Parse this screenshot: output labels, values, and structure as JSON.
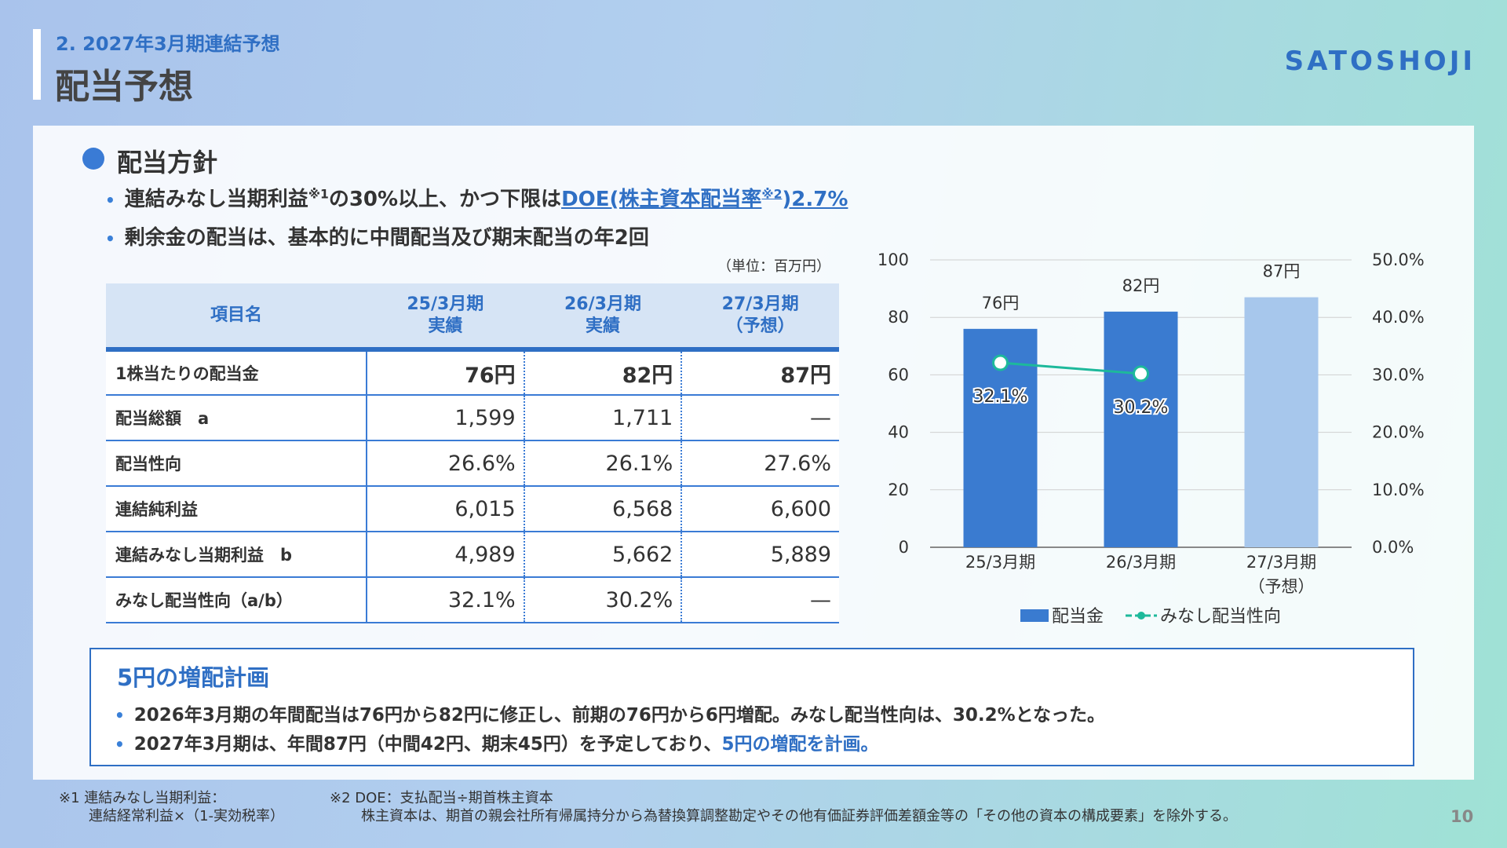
{
  "header": {
    "section": "2. 2027年3月期連結予想",
    "title": "配当予想",
    "logo": "SATOSHOJI"
  },
  "policy": {
    "heading": "配当方針",
    "item1": [
      "連結みなし当期利益",
      "※1",
      "の30%以上、かつ下限は",
      "DOE(株主資本配当率",
      "※2",
      ")2.7%"
    ],
    "item2": "剰余金の配当は、基本的に中間配当及び期末配当の年2回"
  },
  "table": {
    "unit": "（単位：百万円）",
    "headers": [
      "項目名",
      "25/3月期\n実績",
      "26/3月期\n実績",
      "27/3月期\n（予想）"
    ],
    "rows": [
      [
        "1株当たりの配当金",
        "76円",
        "82円",
        "87円"
      ],
      [
        "配当総額　a",
        "1,599",
        "1,711",
        "—"
      ],
      [
        "配当性向",
        "26.6%",
        "26.1%",
        "27.6%"
      ],
      [
        "連結純利益",
        "6,015",
        "6,568",
        "6,600"
      ],
      [
        "連結みなし当期利益　b",
        "4,989",
        "5,662",
        "5,889"
      ],
      [
        "みなし配当性向（a/b）",
        "32.1%",
        "30.2%",
        "—"
      ]
    ]
  },
  "chart_data": {
    "type": "bar",
    "categories": [
      "25/3月期",
      "26/3月期",
      "27/3月期\n（予想）"
    ],
    "series": [
      {
        "name": "配当金",
        "type": "bar",
        "color": "#3a7bd0",
        "colors": [
          "#3a7bd0",
          "#3a7bd0",
          "#a7c7ec"
        ],
        "values": [
          76,
          82,
          87
        ],
        "value_labels": [
          "76円",
          "82円",
          "87円"
        ]
      },
      {
        "name": "みなし配当性向",
        "type": "line",
        "axis": "y2",
        "color": "#1db99b",
        "values": [
          32.1,
          30.2,
          null
        ],
        "value_labels": [
          "32.1%",
          "30.2%",
          null
        ]
      }
    ],
    "ylim": [
      0,
      100
    ],
    "yticks": [
      0,
      20,
      40,
      60,
      80,
      100
    ],
    "y2lim": [
      0,
      50
    ],
    "y2ticks": [
      {
        "value": 0,
        "label": "0.0%"
      },
      {
        "value": 10,
        "label": "10.0%"
      },
      {
        "value": 20,
        "label": "20.0%"
      },
      {
        "value": 30,
        "label": "30.0%"
      },
      {
        "value": 40,
        "label": "40.0%"
      },
      {
        "value": 50,
        "label": "50.0%"
      }
    ],
    "grid": true,
    "legend": "bottom"
  },
  "plan": {
    "title": "5円の増配計画",
    "line1": "2026年3月期の年間配当は76円から82円に修正し、前期の76円から6円増配。みなし配当性向は、30.2%となった。",
    "line2": [
      "2027年3月期は、年間87円（中間42円、期末45円）を予定しており、",
      "5円の増配を計画。"
    ]
  },
  "footnotes": [
    [
      "※1 連結みなし当期利益：",
      "連結経常利益×（1-実効税率）"
    ],
    [
      "※2 DOE：支払配当÷期首株主資本",
      "株主資本は、期首の親会社所有帰属持分から為替換算調整勘定やその他有価証券評価差額金等の「その他の資本の構成要素」を除外する。"
    ]
  ],
  "page_number": "10"
}
